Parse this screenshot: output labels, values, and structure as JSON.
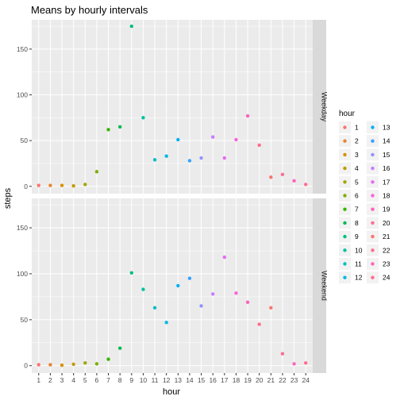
{
  "chart_data": {
    "type": "scatter",
    "title": "Means by hourly intervals",
    "xlabel": "hour",
    "ylabel": "steps",
    "x": [
      1,
      2,
      3,
      4,
      5,
      6,
      7,
      8,
      9,
      10,
      11,
      12,
      13,
      14,
      15,
      16,
      17,
      18,
      19,
      20,
      21,
      22,
      23,
      24
    ],
    "x_ticks": [
      "1",
      "2",
      "3",
      "4",
      "5",
      "6",
      "7",
      "8",
      "9",
      "10",
      "11",
      "12",
      "13",
      "14",
      "15",
      "16",
      "17",
      "18",
      "19",
      "20",
      "21",
      "22",
      "23",
      "24"
    ],
    "xlim": [
      0.4,
      24.6
    ],
    "ylim": [
      -8,
      182
    ],
    "y_ticks": [
      0,
      50,
      100,
      150
    ],
    "grid": true,
    "legend_position": "right",
    "legend_title": "hour",
    "legend_entries": [
      "1",
      "2",
      "3",
      "4",
      "5",
      "6",
      "7",
      "8",
      "9",
      "10",
      "11",
      "12",
      "13",
      "14",
      "15",
      "16",
      "17",
      "18",
      "19",
      "20",
      "21",
      "22",
      "23",
      "24"
    ],
    "colors": [
      "#F8766D",
      "#EA8331",
      "#D89000",
      "#C09B00",
      "#A3A500",
      "#7CAE00",
      "#39B600",
      "#00BB4E",
      "#00BF7D",
      "#00C1A3",
      "#00BFC4",
      "#00BAE0",
      "#00B0F6",
      "#35A2FF",
      "#9590FF",
      "#C77CFF",
      "#E76BF3",
      "#FA62DB",
      "#FF62BC",
      "#FF6C91",
      "#F8766D",
      "#FF6C91",
      "#FF62BC",
      "#FF6C91"
    ],
    "panel_bg": "#EBEBEB",
    "strip_bg": "#D9D9D9",
    "facets": [
      {
        "label": "Weekday",
        "values": [
          1,
          1,
          1,
          0.5,
          2,
          16,
          62,
          65,
          175,
          75,
          29,
          33,
          51,
          28,
          31,
          54,
          31,
          51,
          77,
          45,
          10,
          13,
          6,
          2
        ]
      },
      {
        "label": "Weekend",
        "values": [
          1,
          1,
          0.5,
          1.5,
          3,
          2,
          7,
          19,
          101,
          83,
          63,
          47,
          87,
          95,
          65,
          78,
          118,
          79,
          69,
          45,
          63,
          13,
          2,
          3
        ]
      }
    ]
  }
}
